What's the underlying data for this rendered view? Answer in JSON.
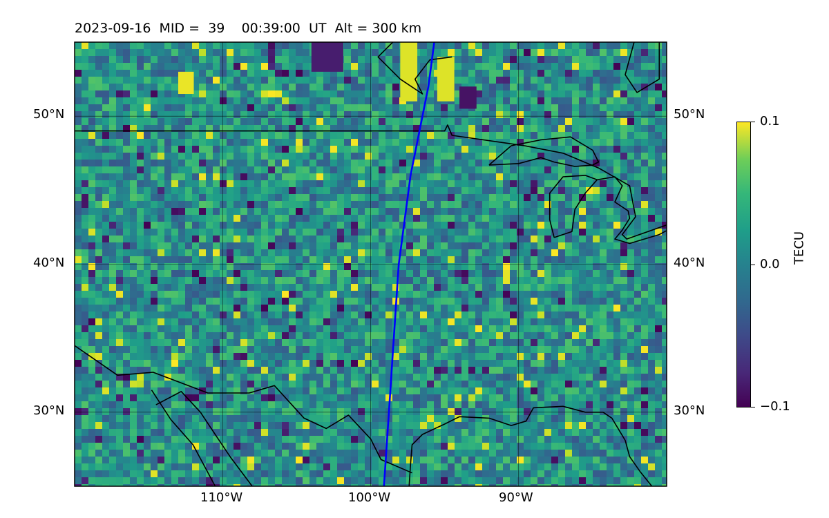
{
  "title": {
    "date": "2023-09-16",
    "mid_label": "MID =",
    "mid_value": "39",
    "time": "00:39:00",
    "time_unit": "UT",
    "alt_label": "Alt = 300 km"
  },
  "map": {
    "lon_range": [
      -120,
      -80
    ],
    "lat_range": [
      25,
      55
    ],
    "lat_ticks": [
      {
        "value": 50,
        "label": "50°N"
      },
      {
        "value": 40,
        "label": "40°N"
      },
      {
        "value": 30,
        "label": "30°N"
      }
    ],
    "lon_ticks": [
      {
        "value": -110,
        "label": "110°W"
      },
      {
        "value": -100,
        "label": "100°W"
      },
      {
        "value": -90,
        "label": "90°W"
      }
    ],
    "track_color": "#0000ff",
    "track": [
      [
        -95.7,
        55
      ],
      [
        -96.1,
        52
      ],
      [
        -96.7,
        49
      ],
      [
        -97.3,
        46
      ],
      [
        -97.7,
        43
      ],
      [
        -98.1,
        40
      ],
      [
        -98.3,
        37
      ],
      [
        -98.5,
        34
      ],
      [
        -98.7,
        31
      ],
      [
        -98.9,
        28
      ],
      [
        -99.1,
        25
      ]
    ],
    "borders": [
      [
        [
          -120,
          49
        ],
        [
          -95,
          49
        ],
        [
          -94.8,
          49.4
        ],
        [
          -94.5,
          48.7
        ],
        [
          -91,
          48.2
        ],
        [
          -89.6,
          48
        ],
        [
          -87,
          47.5
        ],
        [
          -84.6,
          46.5
        ],
        [
          -82.5,
          45.3
        ],
        [
          -82.1,
          43.2
        ],
        [
          -83,
          42
        ],
        [
          -82.7,
          41.7
        ],
        [
          -79,
          43
        ]
      ],
      [
        [
          -120,
          34.5
        ],
        [
          -117.1,
          32.5
        ],
        [
          -114.7,
          32.7
        ],
        [
          -111,
          31.3
        ],
        [
          -108.2,
          31.3
        ],
        [
          -106.5,
          31.8
        ],
        [
          -104.5,
          29.6
        ],
        [
          -103,
          28.9
        ],
        [
          -101.5,
          29.8
        ],
        [
          -100,
          28.2
        ],
        [
          -99.3,
          26.8
        ],
        [
          -97.2,
          25.9
        ]
      ],
      [
        [
          -97.4,
          25
        ],
        [
          -97.3,
          26.5
        ],
        [
          -97.2,
          27.8
        ],
        [
          -96.5,
          28.5
        ],
        [
          -95,
          29.2
        ],
        [
          -94,
          29.7
        ],
        [
          -92,
          29.6
        ],
        [
          -90.5,
          29.1
        ],
        [
          -89.5,
          29.4
        ],
        [
          -89,
          30.3
        ],
        [
          -87,
          30.4
        ],
        [
          -85.5,
          30
        ],
        [
          -84.3,
          30
        ],
        [
          -83.7,
          29.6
        ],
        [
          -82.8,
          28.1
        ],
        [
          -82.5,
          27
        ],
        [
          -81.8,
          26
        ],
        [
          -81,
          25
        ]
      ],
      [
        [
          -87.6,
          41.8
        ],
        [
          -87.9,
          43
        ],
        [
          -87.9,
          44.8
        ],
        [
          -87,
          45.9
        ],
        [
          -85.5,
          46
        ],
        [
          -84.7,
          45.7
        ],
        [
          -85.5,
          44.8
        ],
        [
          -86.2,
          43.7
        ],
        [
          -86.4,
          42.2
        ],
        [
          -87.6,
          41.8
        ]
      ],
      [
        [
          -84.7,
          45.7
        ],
        [
          -83.5,
          45.9
        ],
        [
          -83,
          45.3
        ],
        [
          -83.5,
          44.2
        ],
        [
          -82.6,
          43.6
        ],
        [
          -82.5,
          43.1
        ],
        [
          -83,
          42.3
        ],
        [
          -83.5,
          41.7
        ],
        [
          -82.5,
          41.4
        ],
        [
          -80.5,
          42
        ],
        [
          -79,
          42.8
        ]
      ],
      [
        [
          -92,
          46.7
        ],
        [
          -90,
          46.8
        ],
        [
          -88.5,
          47.2
        ],
        [
          -87.6,
          46.9
        ],
        [
          -86.2,
          46.6
        ],
        [
          -85,
          46.7
        ],
        [
          -84.6,
          46.9
        ],
        [
          -85,
          47.7
        ],
        [
          -86.5,
          48.6
        ],
        [
          -88.5,
          48.4
        ],
        [
          -90.5,
          48
        ],
        [
          -92,
          46.7
        ]
      ],
      [
        [
          -80.5,
          55
        ],
        [
          -80.5,
          52.5
        ],
        [
          -82,
          51.6
        ],
        [
          -82.8,
          52.8
        ],
        [
          -82.2,
          55
        ]
      ],
      [
        [
          -114.5,
          30.5
        ],
        [
          -112.8,
          31.4
        ],
        [
          -111.5,
          30
        ],
        [
          -110.5,
          28.5
        ],
        [
          -109.5,
          27
        ],
        [
          -108,
          25
        ]
      ],
      [
        [
          -114.8,
          31.5
        ],
        [
          -113.5,
          29.5
        ],
        [
          -112,
          27.8
        ],
        [
          -110.5,
          25
        ]
      ],
      [
        [
          -94.5,
          54
        ],
        [
          -96,
          53.8
        ],
        [
          -97,
          52.5
        ],
        [
          -96.5,
          51.5
        ],
        [
          -98,
          52.5
        ],
        [
          -99.5,
          54
        ],
        [
          -98.5,
          55
        ]
      ]
    ]
  },
  "colorbar": {
    "label": "TECU",
    "vmin": -0.1,
    "vmax": 0.1,
    "ticks": [
      "0.1",
      "0.0",
      "−0.1"
    ]
  }
}
